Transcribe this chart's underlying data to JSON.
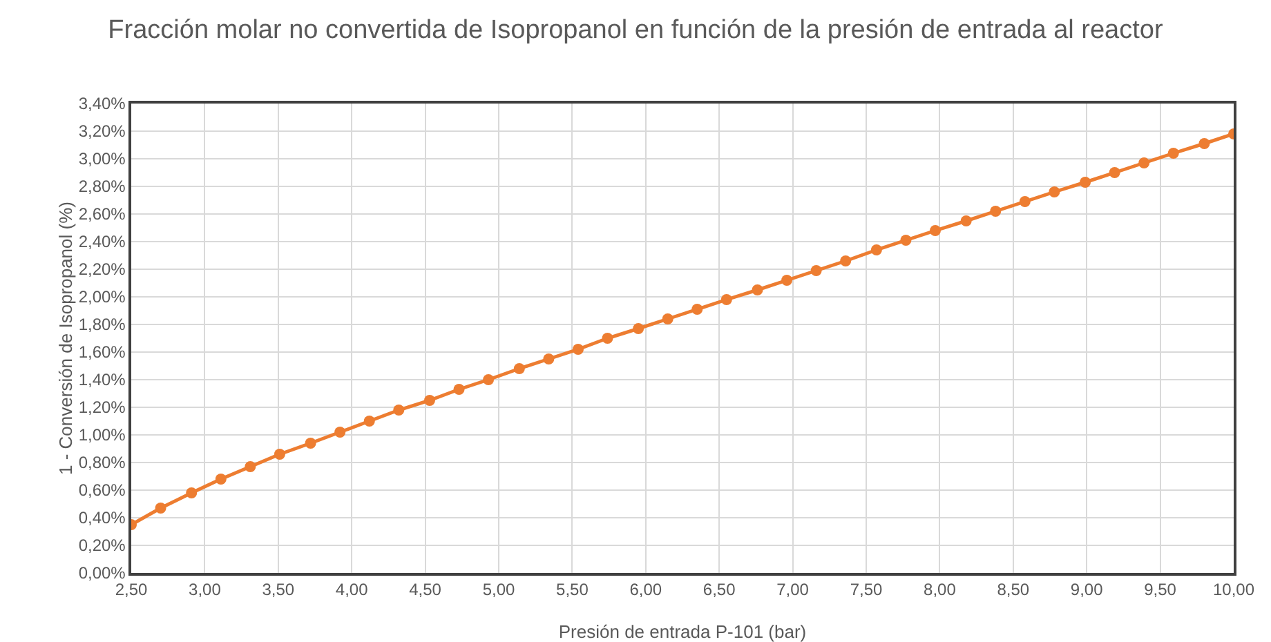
{
  "chart_data": {
    "type": "line",
    "title": "Fracción molar no convertida de Isopropanol en función de la presión de entrada al reactor",
    "xlabel": "Presión de entrada P-101 (bar)",
    "ylabel": "1 - Conversión de Isopropanol (%)",
    "x": [
      2.5,
      2.7,
      2.91,
      3.11,
      3.31,
      3.51,
      3.72,
      3.92,
      4.12,
      4.32,
      4.53,
      4.73,
      4.93,
      5.14,
      5.34,
      5.54,
      5.74,
      5.95,
      6.15,
      6.35,
      6.55,
      6.76,
      6.96,
      7.16,
      7.36,
      7.57,
      7.77,
      7.97,
      8.18,
      8.38,
      8.58,
      8.78,
      8.99,
      9.19,
      9.39,
      9.59,
      9.8,
      10.0
    ],
    "series": [
      {
        "color": "#ed7d31",
        "values": [
          0.35,
          0.47,
          0.58,
          0.68,
          0.77,
          0.86,
          0.94,
          1.02,
          1.1,
          1.18,
          1.25,
          1.33,
          1.4,
          1.48,
          1.55,
          1.62,
          1.7,
          1.77,
          1.84,
          1.91,
          1.98,
          2.05,
          2.12,
          2.19,
          2.26,
          2.34,
          2.41,
          2.48,
          2.55,
          2.62,
          2.69,
          2.76,
          2.83,
          2.9,
          2.97,
          3.04,
          3.11,
          3.18
        ]
      }
    ],
    "xlim": [
      2.5,
      10
    ],
    "xticks": [
      {
        "value": 2.5,
        "label": "2,50"
      },
      {
        "value": 3,
        "label": "3,00"
      },
      {
        "value": 3.5,
        "label": "3,50"
      },
      {
        "value": 4,
        "label": "4,00"
      },
      {
        "value": 4.5,
        "label": "4,50"
      },
      {
        "value": 5,
        "label": "5,00"
      },
      {
        "value": 5.5,
        "label": "5,50"
      },
      {
        "value": 6,
        "label": "6,00"
      },
      {
        "value": 6.5,
        "label": "6,50"
      },
      {
        "value": 7,
        "label": "7,00"
      },
      {
        "value": 7.5,
        "label": "7,50"
      },
      {
        "value": 8,
        "label": "8,00"
      },
      {
        "value": 8.5,
        "label": "8,50"
      },
      {
        "value": 9,
        "label": "9,00"
      },
      {
        "value": 9.5,
        "label": "9,50"
      },
      {
        "value": 10,
        "label": "10,00"
      }
    ],
    "ylim": [
      0,
      3.4
    ],
    "yticks": [
      {
        "value": 0,
        "label": "0,00%"
      },
      {
        "value": 0.2,
        "label": "0,20%"
      },
      {
        "value": 0.4,
        "label": "0,40%"
      },
      {
        "value": 0.6,
        "label": "0,60%"
      },
      {
        "value": 0.8,
        "label": "0,80%"
      },
      {
        "value": 1,
        "label": "1,00%"
      },
      {
        "value": 1.2,
        "label": "1,20%"
      },
      {
        "value": 1.4,
        "label": "1,40%"
      },
      {
        "value": 1.6,
        "label": "1,60%"
      },
      {
        "value": 1.8,
        "label": "1,80%"
      },
      {
        "value": 2,
        "label": "2,00%"
      },
      {
        "value": 2.2,
        "label": "2,20%"
      },
      {
        "value": 2.4,
        "label": "2,40%"
      },
      {
        "value": 2.6,
        "label": "2,60%"
      },
      {
        "value": 2.8,
        "label": "2,80%"
      },
      {
        "value": 3,
        "label": "3,00%"
      },
      {
        "value": 3.2,
        "label": "3,20%"
      },
      {
        "value": 3.4,
        "label": "3,40%"
      }
    ],
    "grid": true,
    "marker": "circle",
    "line_style": "solid"
  }
}
